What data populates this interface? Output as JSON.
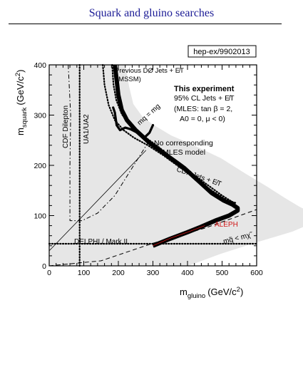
{
  "page": {
    "title": "Squark and gluino searches"
  },
  "chart_data": {
    "type": "line",
    "title": "",
    "reference": "hep-ex/9902013",
    "xlabel": {
      "main": "m",
      "sub": "gluino",
      "unit": "(GeV/c",
      "sup": "2",
      "close": ")"
    },
    "ylabel": {
      "main": "m",
      "sub": "squark",
      "unit": "(GeV/c",
      "sup": "2",
      "close": ")"
    },
    "xlim": [
      0,
      600
    ],
    "ylim": [
      0,
      400
    ],
    "xticks": [
      0,
      100,
      200,
      300,
      400,
      500,
      600
    ],
    "yticks": [
      0,
      100,
      200,
      300,
      400
    ],
    "xtick_labels": [
      "0",
      "100",
      "200",
      "300",
      "400",
      "500",
      "600"
    ],
    "ytick_labels": [
      "0",
      "100",
      "200",
      "300",
      "400"
    ],
    "grid": false,
    "colors": {
      "text": "#000000",
      "title": "#1c1c96",
      "aleph": "#d01818",
      "shade": "#e6e6e6"
    },
    "series": [
      {
        "key": "this_experiment",
        "style": "hatched-band",
        "points": [
          [
            190,
            400
          ],
          [
            195,
            370
          ],
          [
            200,
            340
          ],
          [
            210,
            310
          ],
          [
            225,
            290
          ],
          [
            250,
            270
          ],
          [
            290,
            245
          ],
          [
            340,
            220
          ],
          [
            390,
            195
          ],
          [
            430,
            170
          ],
          [
            470,
            145
          ],
          [
            505,
            130
          ],
          [
            530,
            122
          ],
          [
            545,
            115
          ],
          [
            545,
            110
          ],
          [
            520,
            100
          ],
          [
            480,
            90
          ],
          [
            440,
            78
          ],
          [
            400,
            67
          ],
          [
            350,
            54
          ],
          [
            300,
            40
          ]
        ]
      },
      {
        "key": "previous_d0",
        "style": "dotted",
        "points": [
          [
            155,
            400
          ],
          [
            160,
            360
          ],
          [
            172,
            320
          ],
          [
            190,
            290
          ],
          [
            215,
            270
          ],
          [
            245,
            255
          ],
          [
            285,
            240
          ],
          [
            330,
            220
          ],
          [
            380,
            195
          ],
          [
            430,
            170
          ],
          [
            470,
            150
          ],
          [
            510,
            132
          ],
          [
            540,
            125
          ]
        ]
      },
      {
        "key": "cdf_jets",
        "style": "dotted",
        "points": [
          [
            182,
            400
          ],
          [
            186,
            360
          ],
          [
            194,
            330
          ],
          [
            210,
            302
          ],
          [
            235,
            280
          ],
          [
            265,
            262
          ],
          [
            310,
            240
          ],
          [
            360,
            212
          ],
          [
            410,
            185
          ],
          [
            460,
            160
          ],
          [
            500,
            140
          ],
          [
            535,
            125
          ]
        ]
      },
      {
        "key": "ua1_ua2",
        "style": "dotted",
        "points": [
          [
            88,
            0
          ],
          [
            88,
            400
          ]
        ]
      },
      {
        "key": "cdf_dilepton",
        "style": "dashdot",
        "points": [
          [
            55,
            400
          ],
          [
            62,
            300
          ],
          [
            60,
            200
          ],
          [
            60,
            90
          ],
          [
            95,
            90
          ],
          [
            140,
            105
          ],
          [
            190,
            140
          ],
          [
            240,
            195
          ],
          [
            290,
            250
          ]
        ]
      },
      {
        "key": "delphi_mark2",
        "style": "dotted",
        "points": [
          [
            0,
            44
          ],
          [
            600,
            44
          ]
        ]
      },
      {
        "key": "neutralino_bound",
        "style": "dashed",
        "points": [
          [
            0,
            -30
          ],
          [
            150,
            10
          ],
          [
            300,
            45
          ],
          [
            450,
            75
          ],
          [
            600,
            112
          ]
        ]
      },
      {
        "key": "diagonal",
        "style": "solid-thin",
        "points": [
          [
            0,
            30
          ],
          [
            280,
            230
          ]
        ]
      },
      {
        "key": "mq_eq_mg",
        "style": "thick",
        "points": [
          [
            185,
            315
          ],
          [
            190,
            305
          ],
          [
            195,
            280
          ],
          [
            205,
            270
          ],
          [
            220,
            275
          ],
          [
            235,
            272
          ],
          [
            255,
            265
          ],
          [
            275,
            255
          ],
          [
            290,
            265
          ],
          [
            300,
            280
          ]
        ]
      },
      {
        "key": "aleph",
        "style": "solid-thin",
        "points": [
          [
            300,
            40
          ],
          [
            350,
            55
          ],
          [
            400,
            67
          ],
          [
            450,
            80
          ]
        ]
      }
    ],
    "annotations": [
      {
        "key": "previous_d0",
        "text": "Previous DØ Jets + E̸T",
        "color": "#000000",
        "size": "small"
      },
      {
        "key": "mssm",
        "text": "(MSSM)",
        "color": "#000000",
        "size": "small"
      },
      {
        "key": "this_experiment",
        "text": "This experiment",
        "color": "#000000",
        "size": "bold"
      },
      {
        "key": "cl_jets",
        "text": "95% CL Jets + E̸T",
        "color": "#000000",
        "size": "normal"
      },
      {
        "key": "mles_1",
        "text": "(MLES: tan β = 2,",
        "color": "#000000",
        "size": "normal"
      },
      {
        "key": "mles_2",
        "text": "A0 = 0, μ < 0)",
        "color": "#000000",
        "size": "normal"
      },
      {
        "key": "mq_mg",
        "text": "mq = mg",
        "color": "#000000",
        "size": "normal"
      },
      {
        "key": "no_corr_1",
        "text": "No corresponding",
        "color": "#000000",
        "size": "normal"
      },
      {
        "key": "no_corr_2",
        "text": "MLES model",
        "color": "#000000",
        "size": "normal"
      },
      {
        "key": "cdf_jets",
        "text": "CDF Jets + E̸T",
        "color": "#000000",
        "size": "normal"
      },
      {
        "key": "cdf_dilepton",
        "text": "CDF Dilepton",
        "color": "#000000",
        "size": "normal"
      },
      {
        "key": "ua1_ua2",
        "text": "UA1/UA2",
        "color": "#000000",
        "size": "normal"
      },
      {
        "key": "delphi",
        "text": "DELPHI / Mark II",
        "color": "#000000",
        "size": "normal"
      },
      {
        "key": "aleph",
        "text": "ALEPH",
        "color": "#d01818",
        "size": "normal"
      },
      {
        "key": "mq_lt_mchi",
        "text": "mq̃ < mχ̃",
        "color": "#000000",
        "size": "normal"
      }
    ]
  }
}
